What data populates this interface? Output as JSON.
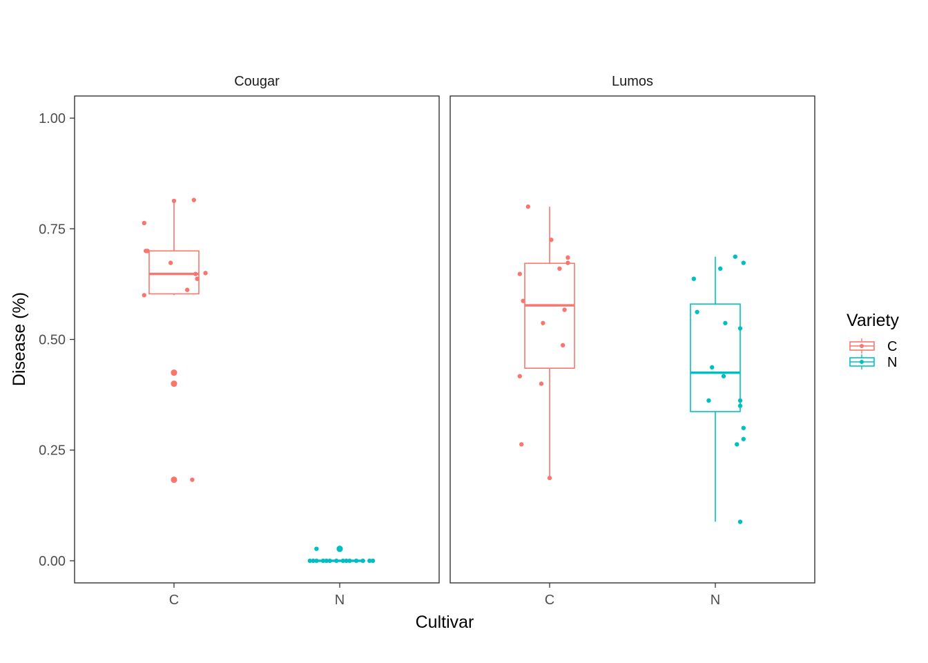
{
  "chart_data": {
    "type": "boxplot",
    "xlabel": "Cultivar",
    "ylabel": "Disease (%)",
    "ylim": [
      -0.05,
      1.05
    ],
    "yticks": [
      "0.00",
      "0.25",
      "0.50",
      "0.75",
      "1.00"
    ],
    "ytick_values": [
      0,
      0.25,
      0.5,
      0.75,
      1.0
    ],
    "categories": [
      "C",
      "N"
    ],
    "grid": false,
    "legend": {
      "title": "Variety",
      "position": "right",
      "entries": [
        {
          "label": "C",
          "color": "#F8766D"
        },
        {
          "label": "N",
          "color": "#00BFC4"
        }
      ]
    },
    "facets": [
      {
        "strip": "Cougar",
        "groups": [
          {
            "category": "C",
            "variety": "C",
            "box": {
              "lower_whisker": 0.6,
              "q1": 0.603,
              "median": 0.648,
              "q3": 0.7,
              "upper_whisker": 0.813
            },
            "outliers": [
              0.425,
              0.425,
              0.4,
              0.4,
              0.183,
              0.183
            ],
            "points": [
              0.813,
              0.815,
              0.763,
              0.7,
              0.7,
              0.673,
              0.65,
              0.648,
              0.637,
              0.612,
              0.6,
              0.425,
              0.4,
              0.183,
              0.183
            ],
            "jitter": [
              0.0,
              0.12,
              -0.18,
              -0.17,
              -0.16,
              -0.02,
              0.19,
              0.13,
              0.14,
              0.08,
              -0.18,
              0.0,
              0.0,
              0.0,
              0.11
            ]
          },
          {
            "category": "N",
            "variety": "N",
            "box": {
              "lower_whisker": 0.0,
              "q1": 0.0,
              "median": 0.0,
              "q3": 0.0,
              "upper_whisker": 0.0
            },
            "outliers": [
              0.027,
              0.027
            ],
            "points": [
              0.027,
              0.0,
              0.0,
              0.0,
              0.0,
              0.0,
              0.0,
              0.0,
              0.0,
              0.0,
              0.0,
              0.0,
              0.0,
              0.0,
              0.0
            ],
            "jitter": [
              -0.14,
              -0.18,
              -0.14,
              -0.1,
              -0.06,
              -0.02,
              0.02,
              0.06,
              0.1,
              0.14,
              0.18,
              0.2,
              0.04,
              -0.08,
              -0.16
            ]
          }
        ]
      },
      {
        "strip": "Lumos",
        "groups": [
          {
            "category": "C",
            "variety": "C",
            "box": {
              "lower_whisker": 0.187,
              "q1": 0.435,
              "median": 0.577,
              "q3": 0.672,
              "upper_whisker": 0.8
            },
            "outliers": [],
            "points": [
              0.8,
              0.725,
              0.685,
              0.673,
              0.66,
              0.648,
              0.587,
              0.567,
              0.537,
              0.487,
              0.417,
              0.4,
              0.263,
              0.187
            ],
            "jitter": [
              -0.13,
              0.01,
              0.11,
              0.11,
              0.06,
              -0.18,
              -0.16,
              0.09,
              -0.04,
              0.08,
              -0.18,
              -0.05,
              -0.17,
              0.0
            ]
          },
          {
            "category": "N",
            "variety": "N",
            "box": {
              "lower_whisker": 0.088,
              "q1": 0.337,
              "median": 0.425,
              "q3": 0.58,
              "upper_whisker": 0.687
            },
            "outliers": [],
            "points": [
              0.687,
              0.673,
              0.66,
              0.637,
              0.562,
              0.537,
              0.525,
              0.437,
              0.417,
              0.362,
              0.362,
              0.35,
              0.3,
              0.275,
              0.263,
              0.088
            ],
            "jitter": [
              0.12,
              0.17,
              0.03,
              -0.13,
              -0.11,
              0.06,
              0.15,
              -0.02,
              0.05,
              -0.04,
              0.15,
              0.15,
              0.17,
              0.17,
              0.13,
              0.15
            ]
          }
        ]
      }
    ]
  }
}
